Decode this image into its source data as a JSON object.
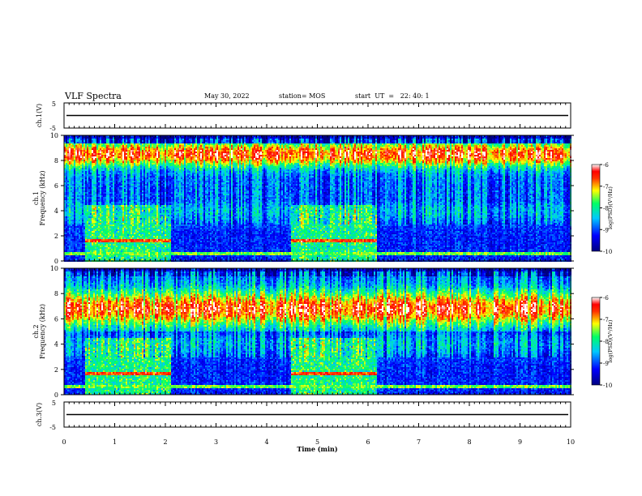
{
  "header": {
    "title": "VLF Spectra",
    "date": "May 30, 2022",
    "station": "station= MOS",
    "start": "start  UT  =   22: 40: 1"
  },
  "colors": {
    "scale": [
      "#000080",
      "#0000ff",
      "#00c8ff",
      "#00ff66",
      "#ffff00",
      "#ff8800",
      "#ff0000",
      "#ffffff"
    ]
  },
  "chart_data": [
    {
      "type": "line",
      "name": "waveform-ch1",
      "ylabel": "ch.1(V)",
      "ylim": [
        -5,
        5
      ],
      "yticks": [
        "5",
        "-5"
      ],
      "x": [
        0,
        10
      ],
      "values": [
        0,
        0
      ]
    },
    {
      "type": "heatmap",
      "name": "spectrogram-ch1",
      "ylabel_top": "ch.1",
      "ylabel": "Frequency (kHz)",
      "ylim": [
        0,
        10
      ],
      "yticks": [
        "0",
        "2",
        "4",
        "6",
        "8",
        "10"
      ],
      "xlim": [
        0,
        10
      ],
      "colorbar": {
        "label": "log(PSD)(V²/Hz)",
        "ticks": [
          "-6",
          "-7",
          "-8",
          "-9",
          "-10"
        ],
        "range": [
          -10,
          -6
        ]
      },
      "band_peak_khz": 8.5,
      "band_peak_log_psd": -6.8
    },
    {
      "type": "heatmap",
      "name": "spectrogram-ch2",
      "ylabel_top": "ch.2",
      "ylabel": "Frequency (kHz)",
      "ylim": [
        0,
        10
      ],
      "yticks": [
        "0",
        "2",
        "4",
        "6",
        "8",
        "10"
      ],
      "xlim": [
        0,
        10
      ],
      "colorbar": {
        "label": "log(PSD)(V²/Hz)",
        "ticks": [
          "-6",
          "-7",
          "-8",
          "-9",
          "-10"
        ],
        "range": [
          -10,
          -6
        ]
      },
      "band_peak_khz": 6.8,
      "band_peak_log_psd": -6.9
    },
    {
      "type": "line",
      "name": "waveform-ch3",
      "ylabel": "ch.3(V)",
      "ylim": [
        -5,
        5
      ],
      "yticks": [
        "5",
        "-5"
      ],
      "x": [
        0,
        10
      ],
      "values": [
        0,
        0
      ]
    }
  ],
  "xaxis": {
    "label": "Time  (min)",
    "ticks": [
      "0",
      "1",
      "2",
      "3",
      "4",
      "5",
      "6",
      "7",
      "8",
      "9",
      "10"
    ]
  }
}
